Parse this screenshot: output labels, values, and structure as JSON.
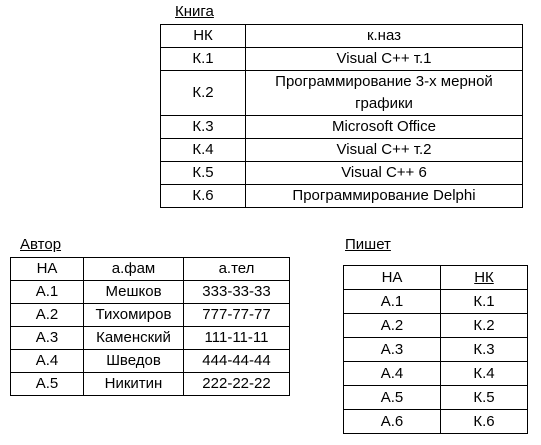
{
  "tables": [
    {
      "title": "Книга",
      "header": [
        "НК",
        "к.наз"
      ],
      "rows": [
        [
          "К.1",
          "Visual C++ т.1"
        ],
        [
          "К.2",
          "Программирование 3-х мерной графики"
        ],
        [
          "К.3",
          "Microsoft Office"
        ],
        [
          "К.4",
          "Visual C++ т.2"
        ],
        [
          "К.5",
          "Visual C++ 6"
        ],
        [
          "К.6",
          "Программирование Delphi"
        ]
      ]
    },
    {
      "title": "Автор",
      "header": [
        "НА",
        "а.фам",
        "а.тел"
      ],
      "rows": [
        [
          "А.1",
          "Мешков",
          "333-33-33"
        ],
        [
          "А.2",
          "Тихомиров",
          "777-77-77"
        ],
        [
          "А.3",
          "Каменский",
          "111-11-11"
        ],
        [
          "А.4",
          "Шведов",
          "444-44-44"
        ],
        [
          "А.5",
          "Никитин",
          "222-22-22"
        ]
      ]
    },
    {
      "title": "Пишет",
      "header": [
        "НА",
        "НК"
      ],
      "rows": [
        [
          "А.1",
          "К.1"
        ],
        [
          "А.2",
          "К.2"
        ],
        [
          "А.3",
          "К.3"
        ],
        [
          "А.4",
          "К.4"
        ],
        [
          "А.5",
          "К.5"
        ],
        [
          "А.6",
          "К.6"
        ]
      ]
    }
  ]
}
